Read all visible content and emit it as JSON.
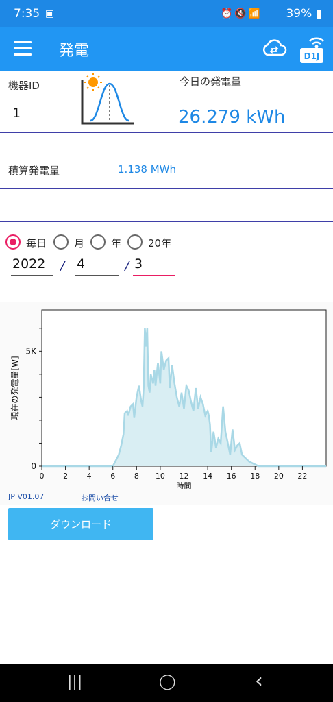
{
  "status_bar": {
    "time": "7:35",
    "battery": "39%"
  },
  "appbar": {
    "title": "発電",
    "badge": "D1J"
  },
  "device": {
    "id_label": "機器ID",
    "id_value": "1",
    "today_label": "今日の発電量",
    "today_value": "26.279 kWh"
  },
  "cumulative": {
    "label": "積算発電量",
    "value": "1.138 MWh"
  },
  "period": {
    "options": [
      "毎日",
      "月",
      "年",
      "20年"
    ],
    "selected": "毎日",
    "year": "2022",
    "month": "4",
    "day": "3"
  },
  "chart_data": {
    "type": "area",
    "ylabel": "現在の発電量[W]",
    "xlabel": "時間",
    "xlim": [
      0,
      24
    ],
    "ylim": [
      0,
      6800
    ],
    "xticks": [
      "0",
      "2",
      "4",
      "6",
      "8",
      "10",
      "12",
      "14",
      "16",
      "18",
      "20",
      "22"
    ],
    "yticks": [
      "0",
      "5K"
    ],
    "color": "#a9d8e6",
    "fill": "#d9eef3",
    "x": [
      0,
      6,
      6.1,
      6.3,
      6.5,
      6.7,
      6.9,
      7,
      7.2,
      7.3,
      7.5,
      7.7,
      7.8,
      8,
      8.2,
      8.4,
      8.5,
      8.6,
      8.7,
      8.8,
      8.9,
      9,
      9.1,
      9.2,
      9.4,
      9.5,
      9.6,
      9.8,
      10,
      10.1,
      10.3,
      10.5,
      10.7,
      10.8,
      11,
      11.2,
      11.4,
      11.6,
      11.8,
      12,
      12.2,
      12.4,
      12.6,
      12.8,
      13,
      13.2,
      13.4,
      13.6,
      13.8,
      14,
      14.1,
      14.2,
      14.3,
      14.5,
      14.7,
      14.9,
      15.1,
      15.3,
      15.5,
      15.7,
      15.9,
      16.1,
      16.3,
      16.5,
      16.7,
      16.9,
      17.1,
      17.3,
      17.5,
      17.7,
      17.9,
      18.1,
      18.3,
      24
    ],
    "y": [
      0,
      0,
      100,
      300,
      500,
      900,
      1400,
      2300,
      2400,
      2200,
      2600,
      2700,
      2100,
      3000,
      3500,
      2800,
      2600,
      3400,
      6000,
      5200,
      6000,
      3500,
      3200,
      4000,
      3600,
      4200,
      3500,
      4500,
      3600,
      5000,
      4200,
      4600,
      4700,
      3400,
      4400,
      3600,
      3000,
      2600,
      3200,
      2500,
      3500,
      3300,
      2800,
      2400,
      3400,
      2500,
      3000,
      2700,
      2200,
      2400,
      2200,
      1800,
      600,
      1500,
      800,
      1200,
      1000,
      2600,
      1500,
      1000,
      500,
      1600,
      700,
      900,
      1000,
      500,
      400,
      300,
      200,
      150,
      100,
      50,
      0,
      0
    ]
  },
  "footer": {
    "version": "JP V01.07",
    "contact": "お問い合せ"
  },
  "download_label": "ダウンロード",
  "nav": {
    "recent": "|||",
    "home": "◯",
    "back": "‹"
  }
}
